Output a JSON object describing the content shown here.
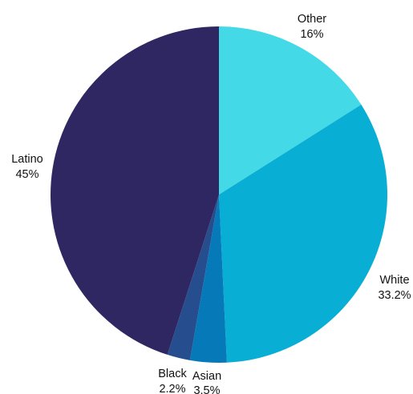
{
  "chart_data": {
    "type": "pie",
    "title": "",
    "slices": [
      {
        "label": "Other",
        "pct_label": "16%",
        "value": 16.0,
        "color": "#43D9E6"
      },
      {
        "label": "White",
        "pct_label": "33.2%",
        "value": 33.2,
        "color": "#08AED3"
      },
      {
        "label": "Asian",
        "pct_label": "3.5%",
        "value": 3.5,
        "color": "#0679B8"
      },
      {
        "label": "Black",
        "pct_label": "2.2%",
        "value": 2.2,
        "color": "#264E8F"
      },
      {
        "label": "Latino",
        "pct_label": "45%",
        "value": 45.0,
        "color": "#2F2762"
      }
    ],
    "start_angle": "12 o'clock",
    "direction": "clockwise",
    "legend": "none"
  }
}
